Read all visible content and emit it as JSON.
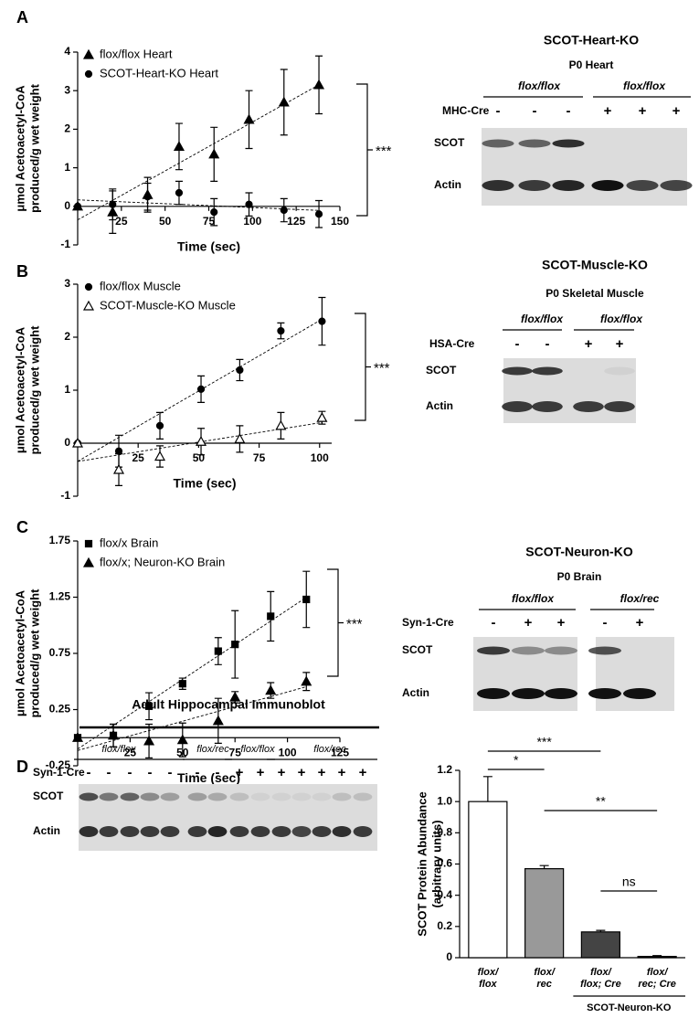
{
  "panels": [
    "A",
    "B",
    "C",
    "D"
  ],
  "chart_data": [
    {
      "type": "line",
      "x": [
        0,
        20,
        40,
        58,
        78,
        98,
        118,
        138
      ],
      "xlim": [
        0,
        150
      ],
      "xticks": [
        25,
        50,
        75,
        100,
        125,
        150
      ],
      "ylim": [
        -1,
        4
      ],
      "yticks": [
        -1,
        0,
        1,
        2,
        3,
        4
      ],
      "xlabel": "Time (sec)",
      "ylabel": [
        "μmol Acetoacetyl-CoA",
        "produced/g wet weight"
      ],
      "fit": "linear",
      "legend": "upper left",
      "annotation": "***",
      "series": [
        {
          "name": "flox/flox Heart",
          "marker": "triangle",
          "filled": true,
          "color": "#000000",
          "values": [
            0,
            -0.15,
            0.3,
            1.55,
            1.35,
            2.25,
            2.7,
            3.15
          ],
          "errors": [
            0,
            0.55,
            0.45,
            0.6,
            0.7,
            0.75,
            0.85,
            0.75
          ]
        },
        {
          "name": "SCOT-Heart-KO Heart",
          "marker": "circle",
          "filled": true,
          "color": "#000000",
          "values": [
            0,
            0.05,
            0.25,
            0.35,
            -0.15,
            0.05,
            -0.1,
            -0.2
          ],
          "errors": [
            0,
            0.4,
            0.35,
            0.3,
            0.35,
            0.3,
            0.3,
            0.35
          ]
        }
      ]
    },
    {
      "type": "line",
      "x": [
        0,
        17,
        34,
        51,
        67,
        84,
        101
      ],
      "xlim": [
        0,
        105
      ],
      "xticks": [
        25,
        50,
        75,
        100
      ],
      "ylim": [
        -1,
        3
      ],
      "yticks": [
        -1,
        0,
        1,
        2,
        3
      ],
      "xlabel": "Time (sec)",
      "ylabel": [
        "μmol Acetoacetyl-CoA",
        "produced/g wet weight"
      ],
      "fit": "linear",
      "legend": "upper left",
      "annotation": "***",
      "series": [
        {
          "name": "flox/flox Muscle",
          "marker": "circle",
          "filled": true,
          "color": "#000000",
          "values": [
            0,
            -0.15,
            0.33,
            1.02,
            1.38,
            2.12,
            2.3
          ],
          "errors": [
            0,
            0.3,
            0.25,
            0.25,
            0.2,
            0.15,
            0.45
          ]
        },
        {
          "name": "SCOT-Muscle-KO Muscle",
          "marker": "triangle",
          "filled": false,
          "color": "#000000",
          "values": [
            0,
            -0.5,
            -0.25,
            0.03,
            0.08,
            0.33,
            0.48
          ],
          "errors": [
            0,
            0.3,
            0.2,
            0.25,
            0.25,
            0.25,
            0.12
          ]
        }
      ]
    },
    {
      "type": "line",
      "x": [
        0,
        17,
        34,
        50,
        67,
        75,
        92,
        109
      ],
      "xlim": [
        0,
        125
      ],
      "xticks": [
        25,
        50,
        75,
        100,
        125
      ],
      "ylim": [
        -0.25,
        1.75
      ],
      "yticks": [
        -0.25,
        0.25,
        0.75,
        1.25,
        1.75
      ],
      "xlabel": "Time (sec)",
      "ylabel": [
        "μmol Acetoacetyl-CoA",
        "produced/g wet weight"
      ],
      "fit": "linear",
      "legend": "upper left",
      "annotation": "***",
      "series": [
        {
          "name": "flox/x Brain",
          "marker": "square",
          "filled": true,
          "color": "#000000",
          "values": [
            0,
            0.02,
            0.28,
            0.48,
            0.77,
            0.83,
            1.08,
            1.23
          ],
          "errors": [
            0,
            0.1,
            0.12,
            0.05,
            0.12,
            0.3,
            0.22,
            0.25
          ]
        },
        {
          "name": "flox/x; Neuron-KO Brain",
          "marker": "triangle",
          "filled": true,
          "color": "#000000",
          "values": [
            0,
            0.02,
            -0.03,
            -0.02,
            0.15,
            0.36,
            0.42,
            0.5
          ],
          "errors": [
            0,
            0.1,
            0.15,
            0.15,
            0.2,
            0.05,
            0.07,
            0.08
          ]
        }
      ]
    },
    {
      "type": "bar",
      "categories": [
        "flox/\nflox",
        "flox/\nrec",
        "flox/\nflox; Cre",
        "flox/\nrec; Cre"
      ],
      "values": [
        1.0,
        0.57,
        0.165,
        0.008
      ],
      "errors": [
        0.16,
        0.02,
        0.01,
        0.005
      ],
      "colors": [
        "#ffffff",
        "#999999",
        "#444444",
        "#000000"
      ],
      "ylim": [
        0,
        1.2
      ],
      "yticks": [
        0,
        0.2,
        0.4,
        0.6,
        0.8,
        {
          "value": 1,
          "label": "1.0"
        },
        1.2
      ],
      "ylabel": [
        "SCOT Protein Abundance",
        "(arbitrary units)"
      ],
      "comparisons": [
        "*",
        "***",
        "**",
        "ns"
      ],
      "group_label": "SCOT-Neuron-KO"
    }
  ],
  "blots": [
    {
      "title": "SCOT-Heart-KO",
      "subtitle": "P0 Heart",
      "genotypes": [
        "flox/flox",
        "flox/flox"
      ],
      "cre": "MHC-Cre",
      "lanes": [
        "-",
        "-",
        "-",
        "+",
        "+",
        "+"
      ],
      "rows": [
        "SCOT",
        "Actin"
      ]
    },
    {
      "title": "SCOT-Muscle-KO",
      "subtitle": "P0 Skeletal Muscle",
      "genotypes": [
        "flox/flox",
        "flox/flox"
      ],
      "cre": "HSA-Cre",
      "lanes": [
        "-",
        "-",
        "+",
        "+"
      ],
      "rows": [
        "SCOT",
        "Actin"
      ]
    },
    {
      "title": "SCOT-Neuron-KO",
      "subtitle": "P0 Brain",
      "genotypes": [
        "flox/flox",
        "flox/rec"
      ],
      "cre": "Syn-1-Cre",
      "lanes": [
        "-",
        "+",
        "+",
        "-",
        "+"
      ],
      "rows": [
        "SCOT",
        "Actin"
      ]
    },
    {
      "title": "Adult Hippocampal Immunoblot",
      "genotypes": [
        "flox/flox",
        "flox/rec",
        "flox/flox",
        "flox/rec"
      ],
      "cre": "Syn-1-Cre",
      "lanes": [
        "-",
        "-",
        "-",
        "-",
        "-",
        "-",
        "-",
        "+",
        "+",
        "+",
        "+",
        "+",
        "+",
        "+"
      ],
      "rows": [
        "SCOT",
        "Actin"
      ]
    }
  ]
}
